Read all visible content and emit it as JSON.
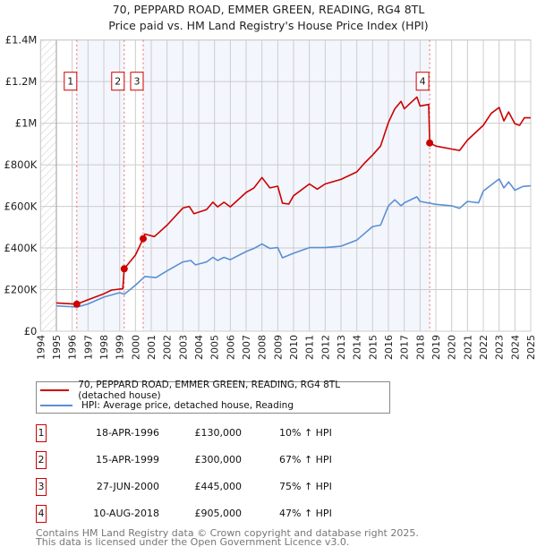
{
  "title_line1": "70, PEPPARD ROAD, EMMER GREEN, READING, RG4 8TL",
  "title_line2": "Price paid vs. HM Land Registry's House Price Index (HPI)",
  "chart_data": {
    "type": "line",
    "title": "70, PEPPARD ROAD, EMMER GREEN, READING, RG4 8TL — Price paid vs. HM Land Registry's House Price Index (HPI)",
    "xlim": [
      1994,
      2025
    ],
    "ylim": [
      0,
      1400000
    ],
    "x_ticks": [
      1994,
      1995,
      1996,
      1997,
      1998,
      1999,
      2000,
      2001,
      2002,
      2003,
      2004,
      2005,
      2006,
      2007,
      2008,
      2009,
      2010,
      2011,
      2012,
      2013,
      2014,
      2015,
      2016,
      2017,
      2018,
      2019,
      2020,
      2021,
      2022,
      2023,
      2024,
      2025
    ],
    "y_ticks": [
      {
        "value": 0,
        "label": "£0"
      },
      {
        "value": 200000,
        "label": "£200K"
      },
      {
        "value": 400000,
        "label": "£400K"
      },
      {
        "value": 600000,
        "label": "£600K"
      },
      {
        "value": 800000,
        "label": "£800K"
      },
      {
        "value": 1000000,
        "label": "£1M"
      },
      {
        "value": 1200000,
        "label": "£1.2M"
      },
      {
        "value": 1400000,
        "label": "£1.4M"
      }
    ],
    "grid": true,
    "series": [
      {
        "name": "70, PEPPARD ROAD, EMMER GREEN, READING, RG4 8TL (detached house)",
        "color": "#cc0000",
        "points": [
          [
            1995,
            136
          ],
          [
            1996.29,
            130
          ],
          [
            1997,
            151
          ],
          [
            1998,
            180
          ],
          [
            1998.5,
            198
          ],
          [
            1999.2,
            204
          ],
          [
            1999.29,
            300
          ],
          [
            2000,
            366
          ],
          [
            2000.49,
            445
          ],
          [
            2000.6,
            467
          ],
          [
            2001.2,
            455
          ],
          [
            2002,
            510
          ],
          [
            2003,
            592
          ],
          [
            2003.4,
            600
          ],
          [
            2003.7,
            565
          ],
          [
            2004.5,
            585
          ],
          [
            2004.9,
            620
          ],
          [
            2005.2,
            598
          ],
          [
            2005.6,
            620
          ],
          [
            2006,
            598
          ],
          [
            2007,
            667
          ],
          [
            2007.5,
            689
          ],
          [
            2008,
            739
          ],
          [
            2008.5,
            689
          ],
          [
            2009,
            697
          ],
          [
            2009.3,
            616
          ],
          [
            2009.7,
            611
          ],
          [
            2010,
            651
          ],
          [
            2011,
            708
          ],
          [
            2011.5,
            683
          ],
          [
            2012,
            708
          ],
          [
            2013,
            730
          ],
          [
            2014,
            766
          ],
          [
            2014.5,
            809
          ],
          [
            2015,
            847
          ],
          [
            2015.5,
            890
          ],
          [
            2016,
            1004
          ],
          [
            2016.4,
            1069
          ],
          [
            2016.8,
            1105
          ],
          [
            2017,
            1069
          ],
          [
            2017.8,
            1126
          ],
          [
            2018,
            1083
          ],
          [
            2018.55,
            1090
          ],
          [
            2018.61,
            905
          ],
          [
            2019,
            890
          ],
          [
            2020,
            876
          ],
          [
            2020.5,
            869
          ],
          [
            2021,
            919
          ],
          [
            2022,
            990
          ],
          [
            2022.5,
            1047
          ],
          [
            2023,
            1076
          ],
          [
            2023.3,
            1011
          ],
          [
            2023.6,
            1054
          ],
          [
            2024,
            997
          ],
          [
            2024.3,
            990
          ],
          [
            2024.6,
            1026
          ],
          [
            2025,
            1026
          ]
        ]
      },
      {
        "name": "HPI: Average price, detached house, Reading",
        "color": "#5b8fd4",
        "points": [
          [
            1995,
            122
          ],
          [
            1996.3,
            116
          ],
          [
            1997,
            131
          ],
          [
            1998,
            164
          ],
          [
            1999,
            185
          ],
          [
            1999.3,
            178
          ],
          [
            2000,
            221
          ],
          [
            2000.6,
            263
          ],
          [
            2001.3,
            258
          ],
          [
            2002,
            290
          ],
          [
            2003,
            333
          ],
          [
            2003.5,
            340
          ],
          [
            2003.8,
            319
          ],
          [
            2004.5,
            333
          ],
          [
            2004.9,
            355
          ],
          [
            2005.2,
            340
          ],
          [
            2005.6,
            355
          ],
          [
            2006,
            344
          ],
          [
            2007,
            383
          ],
          [
            2007.5,
            398
          ],
          [
            2008,
            419
          ],
          [
            2008.5,
            398
          ],
          [
            2009,
            402
          ],
          [
            2009.3,
            353
          ],
          [
            2010,
            375
          ],
          [
            2011,
            402
          ],
          [
            2012,
            402
          ],
          [
            2013,
            409
          ],
          [
            2014,
            438
          ],
          [
            2015,
            503
          ],
          [
            2015.5,
            510
          ],
          [
            2016,
            603
          ],
          [
            2016.4,
            632
          ],
          [
            2016.8,
            603
          ],
          [
            2017,
            617
          ],
          [
            2017.8,
            646
          ],
          [
            2018,
            624
          ],
          [
            2019,
            610
          ],
          [
            2020,
            603
          ],
          [
            2020.5,
            591
          ],
          [
            2021,
            624
          ],
          [
            2021.7,
            617
          ],
          [
            2022,
            674
          ],
          [
            2023,
            732
          ],
          [
            2023.3,
            689
          ],
          [
            2023.6,
            718
          ],
          [
            2024,
            678
          ],
          [
            2024.5,
            696
          ],
          [
            2025,
            699
          ]
        ]
      }
    ],
    "y_units_note": "series point values in £K",
    "sales": [
      {
        "num": "1",
        "x": 1996.29,
        "price": 130000
      },
      {
        "num": "2",
        "x": 1999.29,
        "price": 300000
      },
      {
        "num": "3",
        "x": 2000.49,
        "price": 445000
      },
      {
        "num": "4",
        "x": 2018.61,
        "price": 905000
      }
    ]
  },
  "legend": {
    "property": "70, PEPPARD ROAD, EMMER GREEN, READING, RG4 8TL (detached house)",
    "hpi": "HPI: Average price, detached house, Reading"
  },
  "sales_table": [
    {
      "num": "1",
      "date": "18-APR-1996",
      "price": "£130,000",
      "hpi": "10% ↑ HPI"
    },
    {
      "num": "2",
      "date": "15-APR-1999",
      "price": "£300,000",
      "hpi": "67% ↑ HPI"
    },
    {
      "num": "3",
      "date": "27-JUN-2000",
      "price": "£445,000",
      "hpi": "75% ↑ HPI"
    },
    {
      "num": "4",
      "date": "10-AUG-2018",
      "price": "£905,000",
      "hpi": "47% ↑ HPI"
    }
  ],
  "footer": {
    "line1": "Contains HM Land Registry data © Crown copyright and database right 2025.",
    "line2": "This data is licensed under the Open Government Licence v3.0."
  }
}
